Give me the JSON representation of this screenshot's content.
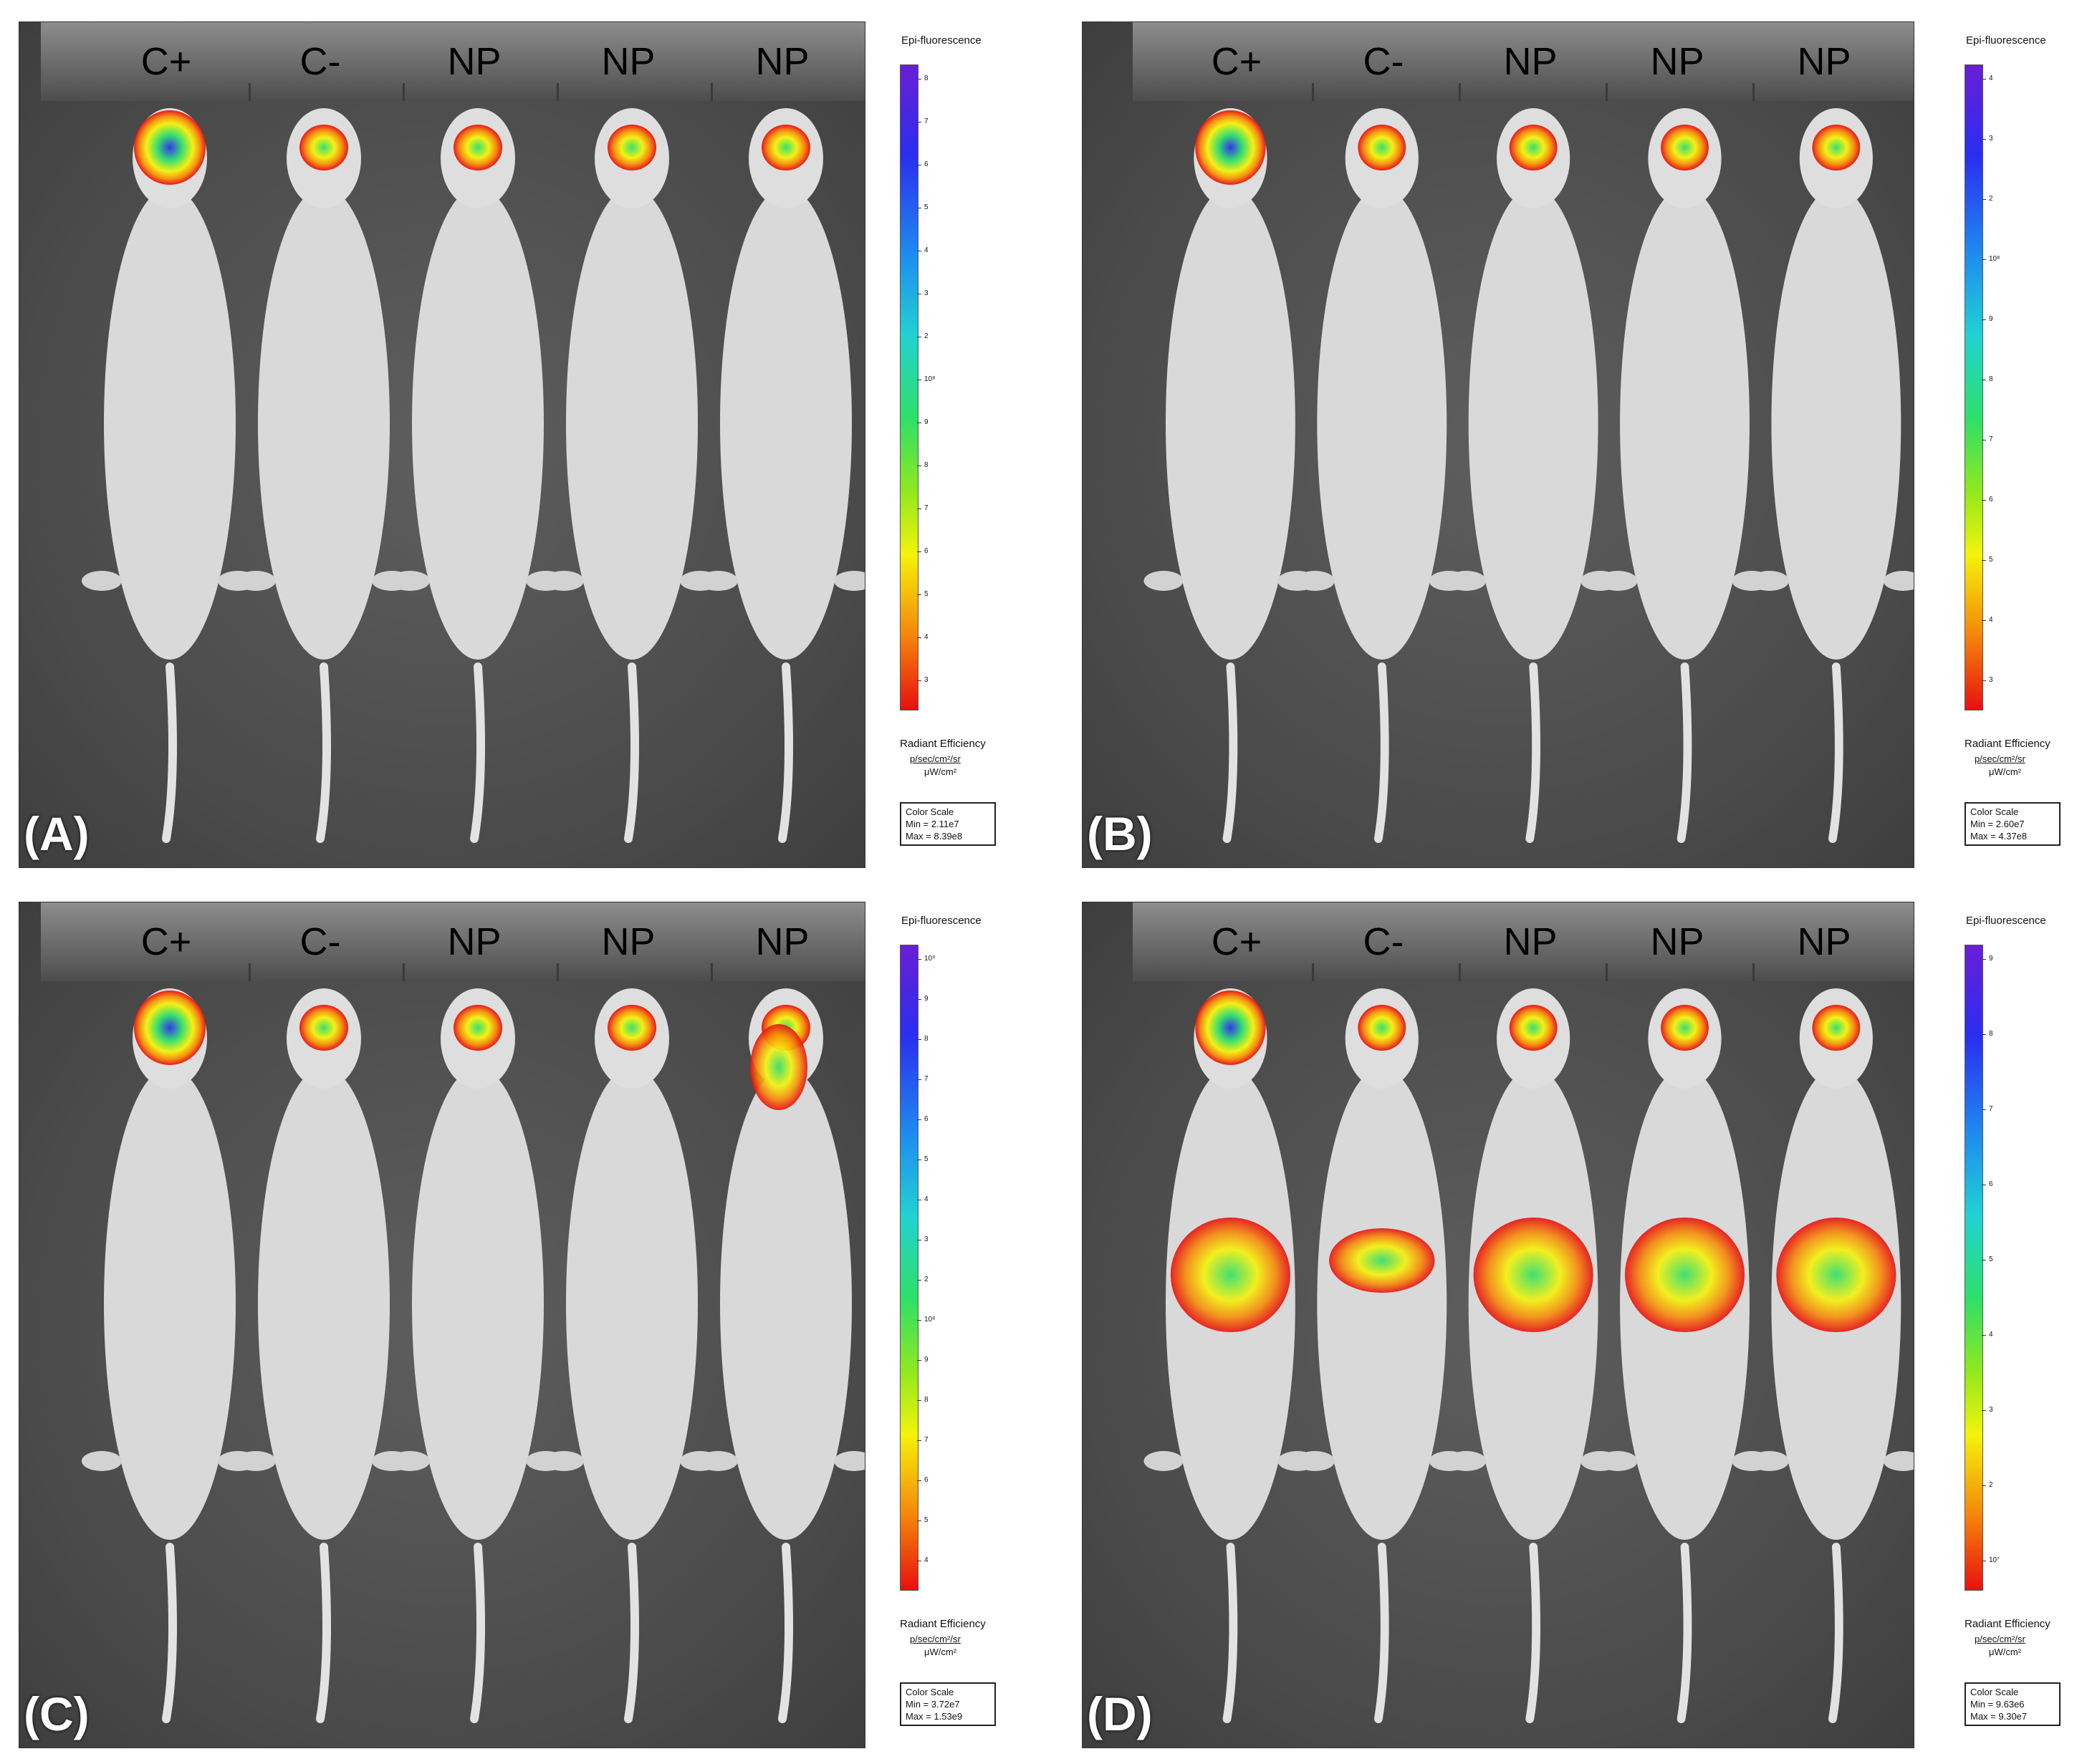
{
  "lane_labels": [
    "C+",
    "C-",
    "NP",
    "NP",
    "NP"
  ],
  "legend_common": {
    "title": "Epi-fluorescence",
    "radiant_line1": "Radiant Efficiency",
    "unit_numerator": "p/sec/cm²/sr",
    "unit_denominator": "μW/cm²",
    "color_scale_label": "Color Scale"
  },
  "colors": {
    "background": "#555555",
    "signal_high": "#2a2ef0",
    "signal_mid": "#2fe067",
    "signal_low": "#e81010"
  },
  "panels": [
    {
      "label": "(A)",
      "min": "Min = 2.11e7",
      "max": "Max = 8.39e8",
      "ticks": [
        "8",
        "7",
        "6",
        "5",
        "4",
        "3",
        "2",
        "10⁸",
        "9",
        "8",
        "7",
        "6",
        "5",
        "4",
        "3"
      ]
    },
    {
      "label": "(B)",
      "min": "Min = 2.60e7",
      "max": "Max = 4.37e8",
      "ticks": [
        "4",
        "3",
        "2",
        "10⁸",
        "9",
        "8",
        "7",
        "6",
        "5",
        "4",
        "3"
      ]
    },
    {
      "label": "(C)",
      "min": "Min = 3.72e7",
      "max": "Max = 1.53e9",
      "ticks": [
        "10⁹",
        "9",
        "8",
        "7",
        "6",
        "5",
        "4",
        "3",
        "2",
        "10⁸",
        "9",
        "8",
        "7",
        "6",
        "5",
        "4"
      ]
    },
    {
      "label": "(D)",
      "min": "Min = 9.63e6",
      "max": "Max = 9.30e7",
      "ticks": [
        "9",
        "8",
        "7",
        "6",
        "5",
        "4",
        "3",
        "2",
        "10⁷"
      ]
    }
  ]
}
